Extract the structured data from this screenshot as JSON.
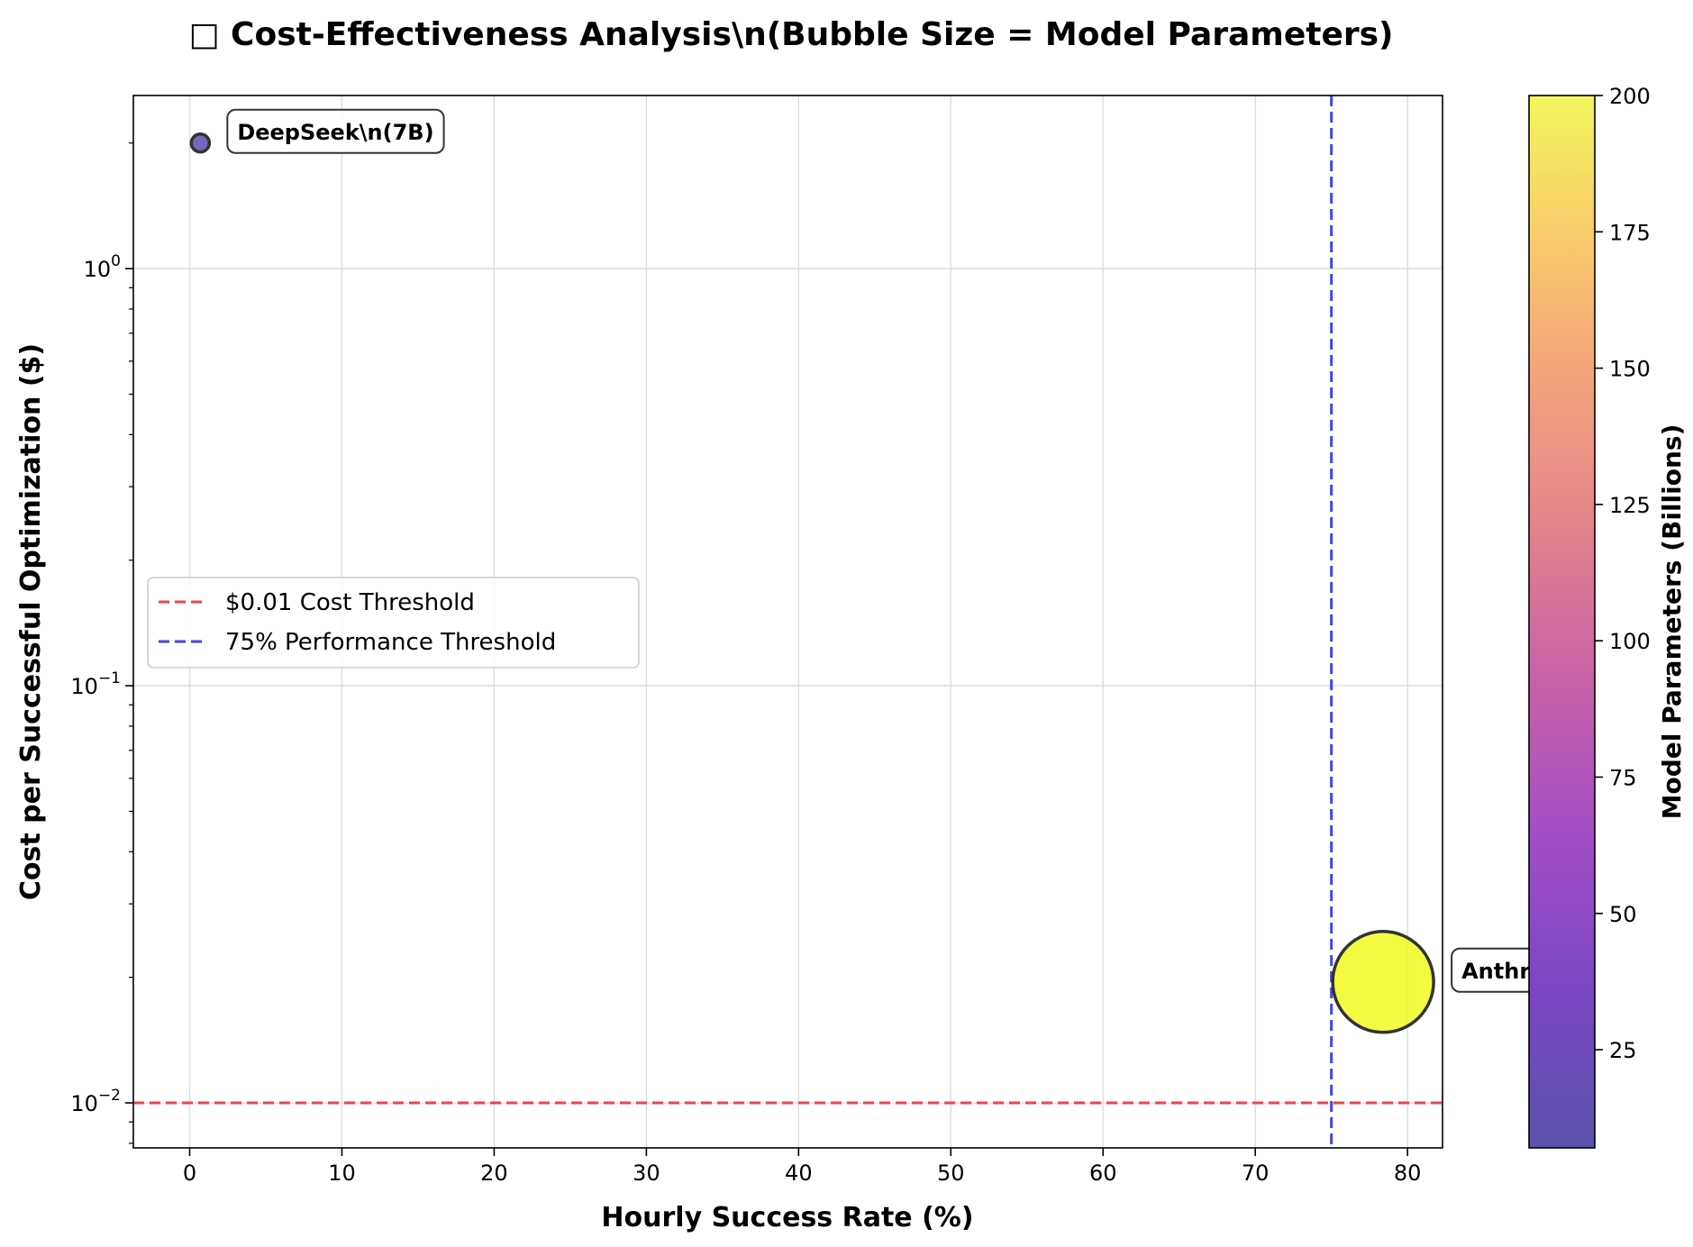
{
  "chart_data": {
    "type": "scatter",
    "title": "□ Cost-Effectiveness Analysis\\n(Bubble Size = Model Parameters)",
    "xlabel": "Hourly Success Rate (%)",
    "ylabel": "Cost per Successful Optimization ($)",
    "x_scale": "linear",
    "y_scale": "log",
    "xlim": [
      -3.7,
      82.3
    ],
    "ylim": [
      0.0078,
      2.6
    ],
    "x_ticks": [
      0,
      10,
      20,
      30,
      40,
      50,
      60,
      70,
      80
    ],
    "y_ticks": [
      {
        "value": 0.01,
        "base": "10",
        "exp": "−2"
      },
      {
        "value": 0.1,
        "base": "10",
        "exp": "−1"
      },
      {
        "value": 1,
        "base": "10",
        "exp": "0"
      }
    ],
    "grid": true,
    "points": [
      {
        "label": "DeepSeek\\n(7B)",
        "x": 0.7,
        "y": 2.0,
        "params": 7,
        "color": "#5a4fb0"
      },
      {
        "label": "Anthrop",
        "x": 78.4,
        "y": 0.0195,
        "params": 200,
        "color": "#f0f921"
      }
    ],
    "reference_lines": [
      {
        "orientation": "horizontal",
        "value": 0.01,
        "label": "$0.01 Cost Threshold",
        "color": "#ee4444"
      },
      {
        "orientation": "vertical",
        "value": 75,
        "label": "75% Performance Threshold",
        "color": "#4444ee"
      }
    ],
    "legend": {
      "position": "center-left",
      "entries": [
        "$0.01 Cost Threshold",
        "75% Performance Threshold"
      ]
    },
    "colorbar": {
      "label": "Model Parameters (Billions)",
      "colormap": "plasma",
      "range": [
        7,
        200
      ],
      "ticks": [
        25,
        50,
        75,
        100,
        125,
        150,
        175,
        200
      ]
    }
  }
}
